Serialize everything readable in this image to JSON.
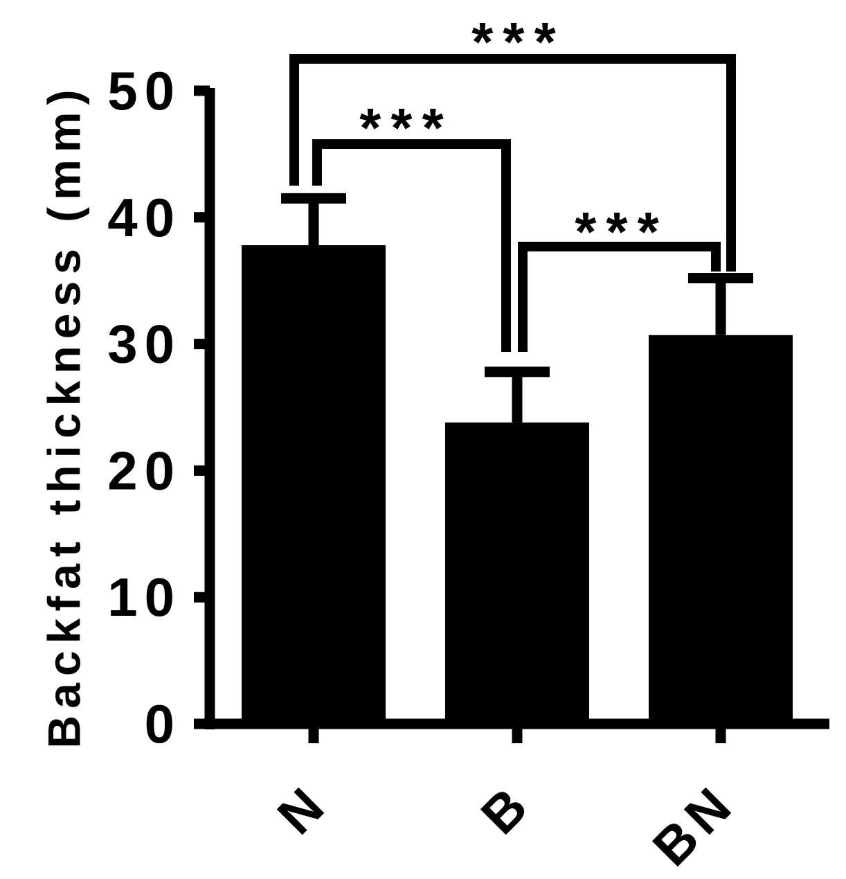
{
  "chart_data": {
    "type": "bar",
    "categories": [
      "N",
      "B",
      "BN"
    ],
    "values": [
      37.8,
      23.8,
      30.7
    ],
    "errors": [
      3.7,
      4.0,
      4.5
    ],
    "title": "",
    "xlabel": "",
    "ylabel": "Backfat thickness (mm)",
    "ylim": [
      0,
      50
    ],
    "yticks": [
      "0",
      "10",
      "20",
      "30",
      "40",
      "50"
    ],
    "grid": false,
    "legend": "none",
    "bar_color": "#000000",
    "significance": [
      {
        "from": "N",
        "to": "B",
        "label": "***"
      },
      {
        "from": "B",
        "to": "BN",
        "label": "***"
      },
      {
        "from": "N",
        "to": "BN",
        "label": "***"
      }
    ]
  }
}
